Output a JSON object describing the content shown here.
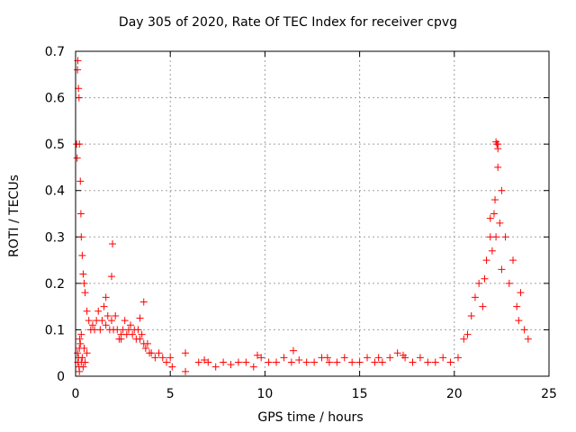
{
  "chart_data": {
    "type": "scatter",
    "title": "Day 305 of 2020, Rate Of TEC Index for receiver cpvg",
    "xlabel": "GPS time / hours",
    "ylabel": "ROTI / TECUs",
    "xlim": [
      0,
      25
    ],
    "ylim": [
      0,
      0.7
    ],
    "xticks": [
      "0",
      "5",
      "10",
      "15",
      "20",
      "25"
    ],
    "yticks": [
      "0",
      "0.1",
      "0.2",
      "0.3",
      "0.4",
      "0.5",
      "0.6",
      "0.7"
    ],
    "grid": true,
    "marker": "plus",
    "color": "#ff0000",
    "series": [
      {
        "x": [
          0.05,
          0.08,
          0.1,
          0.12,
          0.15,
          0.18,
          0.2,
          0.25,
          0.28,
          0.3,
          0.35,
          0.4,
          0.45,
          0.5,
          0.6,
          0.7,
          0.8,
          0.9,
          1.0,
          1.1,
          1.2,
          1.3,
          1.4,
          1.5,
          1.6,
          1.7,
          1.8,
          1.9,
          2.0,
          2.1,
          2.2,
          2.3,
          2.4,
          2.5,
          2.6,
          2.7,
          2.8,
          2.9,
          3.0,
          3.1,
          3.2,
          3.3,
          3.4,
          3.5,
          3.6,
          3.7,
          3.8,
          3.9,
          4.0,
          4.2,
          4.4,
          4.6,
          4.8,
          5.0,
          5.1,
          0.1,
          0.15,
          0.2,
          0.3,
          0.22,
          0.18,
          0.25,
          0.12,
          0.3,
          0.2,
          0.4,
          0.5,
          0.6,
          0.35,
          0.45,
          1.95,
          1.9,
          3.6,
          3.4,
          1.6,
          2.4,
          5.8,
          5.8,
          6.5,
          6.8,
          7.0,
          7.4,
          7.8,
          8.2,
          8.6,
          9.0,
          9.4,
          9.8,
          10.2,
          10.6,
          11.0,
          11.4,
          11.8,
          12.2,
          12.6,
          13.0,
          13.4,
          13.8,
          14.2,
          14.6,
          15.0,
          15.4,
          15.8,
          16.2,
          16.6,
          17.0,
          17.4,
          17.8,
          18.2,
          18.6,
          19.0,
          19.4,
          19.8,
          20.2,
          20.5,
          20.7,
          20.9,
          21.1,
          21.3,
          21.5,
          21.7,
          21.9,
          22.1,
          22.3,
          22.5,
          22.7,
          22.9,
          23.1,
          23.3,
          23.5,
          23.7,
          23.9,
          22.2,
          22.25,
          22.3,
          22.3,
          22.15,
          22.2,
          21.9,
          22.0,
          22.4,
          22.5,
          21.6,
          23.4,
          9.6,
          11.5,
          13.3,
          16.0,
          17.3
        ],
        "y": [
          0.5,
          0.47,
          0.66,
          0.68,
          0.62,
          0.6,
          0.5,
          0.42,
          0.35,
          0.3,
          0.26,
          0.22,
          0.2,
          0.18,
          0.14,
          0.12,
          0.1,
          0.11,
          0.1,
          0.12,
          0.14,
          0.1,
          0.12,
          0.15,
          0.11,
          0.13,
          0.1,
          0.12,
          0.1,
          0.13,
          0.1,
          0.08,
          0.09,
          0.1,
          0.12,
          0.09,
          0.1,
          0.11,
          0.09,
          0.1,
          0.08,
          0.1,
          0.08,
          0.09,
          0.07,
          0.06,
          0.07,
          0.05,
          0.05,
          0.04,
          0.05,
          0.04,
          0.03,
          0.04,
          0.02,
          0.05,
          0.04,
          0.06,
          0.03,
          0.08,
          0.02,
          0.07,
          0.03,
          0.09,
          0.01,
          0.02,
          0.03,
          0.05,
          0.04,
          0.06,
          0.285,
          0.215,
          0.16,
          0.125,
          0.17,
          0.08,
          0.05,
          0.01,
          0.03,
          0.035,
          0.03,
          0.02,
          0.03,
          0.025,
          0.03,
          0.03,
          0.02,
          0.04,
          0.03,
          0.03,
          0.04,
          0.03,
          0.035,
          0.03,
          0.03,
          0.04,
          0.03,
          0.03,
          0.04,
          0.03,
          0.03,
          0.04,
          0.03,
          0.03,
          0.04,
          0.05,
          0.04,
          0.03,
          0.04,
          0.03,
          0.03,
          0.04,
          0.03,
          0.04,
          0.08,
          0.09,
          0.13,
          0.17,
          0.2,
          0.15,
          0.25,
          0.3,
          0.35,
          0.5,
          0.4,
          0.3,
          0.2,
          0.25,
          0.15,
          0.18,
          0.1,
          0.08,
          0.505,
          0.5,
          0.49,
          0.45,
          0.38,
          0.3,
          0.34,
          0.27,
          0.33,
          0.23,
          0.21,
          0.12,
          0.045,
          0.055,
          0.04,
          0.04,
          0.045
        ]
      }
    ]
  }
}
